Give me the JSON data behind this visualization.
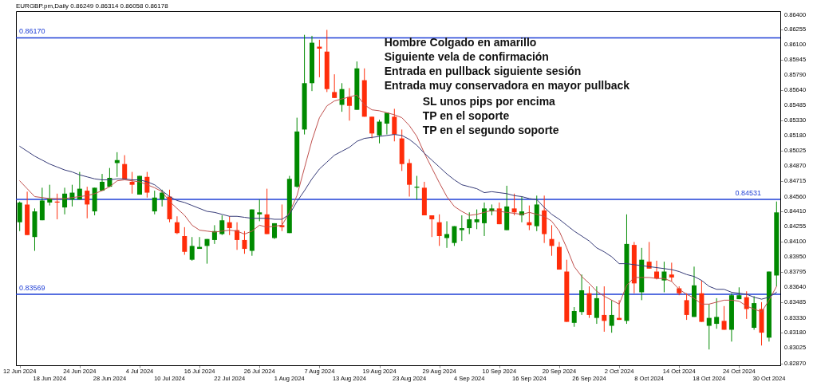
{
  "chart_data": {
    "type": "candlestick",
    "title": "EURGBP.pm,Daily  0.86249 0.86314 0.86058 0.86178",
    "categories": [
      "12 Jun 2024",
      null,
      null,
      null,
      "18 Jun 2024",
      null,
      null,
      null,
      "24 Jun 2024",
      null,
      null,
      null,
      "28 Jun 2024",
      null,
      null,
      null,
      "4 Jul 2024",
      null,
      null,
      null,
      "10 Jul 2024",
      null,
      null,
      null,
      "16 Jul 2024",
      null,
      null,
      null,
      "22 Jul 2024",
      null,
      null,
      null,
      "26 Jul 2024",
      null,
      null,
      null,
      "1 Aug 2024",
      null,
      null,
      null,
      "7 Aug 2024",
      null,
      null,
      null,
      "13 Aug 2024",
      null,
      null,
      null,
      "19 Aug 2024",
      null,
      null,
      null,
      "23 Aug 2024",
      null,
      null,
      null,
      "29 Aug 2024",
      null,
      null,
      null,
      "4 Sep 2024",
      null,
      null,
      null,
      "10 Sep 2024",
      null,
      null,
      null,
      "16 Sep 2024",
      null,
      null,
      null,
      "20 Sep 2024",
      null,
      null,
      null,
      "26 Sep 2024",
      null,
      null,
      null,
      "2 Oct 2024",
      null,
      null,
      null,
      "8 Oct 2024",
      null,
      null,
      null,
      "14 Oct 2024",
      null,
      null,
      null,
      "18 Oct 2024",
      null,
      null,
      null,
      "24 Oct 2024",
      null,
      null,
      null,
      "30 Oct 2024",
      null
    ],
    "ohlc": [
      [
        0.843,
        0.8451,
        0.8421,
        0.845
      ],
      [
        0.8448,
        0.8461,
        0.8417,
        0.8417
      ],
      [
        0.8415,
        0.8444,
        0.8401,
        0.8441
      ],
      [
        0.8432,
        0.8465,
        0.8432,
        0.8452
      ],
      [
        0.845,
        0.8468,
        0.8447,
        0.8454
      ],
      [
        0.8451,
        0.8459,
        0.8433,
        0.845
      ],
      [
        0.8445,
        0.8465,
        0.8438,
        0.8459
      ],
      [
        0.8453,
        0.8468,
        0.8446,
        0.846
      ],
      [
        0.8453,
        0.8481,
        0.8453,
        0.8464
      ],
      [
        0.8462,
        0.8466,
        0.8434,
        0.8448
      ],
      [
        0.8441,
        0.8465,
        0.8437,
        0.8465
      ],
      [
        0.8462,
        0.8479,
        0.8462,
        0.8471
      ],
      [
        0.8466,
        0.8485,
        0.8466,
        0.8475
      ],
      [
        0.849,
        0.8501,
        0.8476,
        0.8493
      ],
      [
        0.8489,
        0.8498,
        0.8474,
        0.8474
      ],
      [
        0.8471,
        0.8481,
        0.8459,
        0.8468
      ],
      [
        0.8458,
        0.8477,
        0.8458,
        0.8477
      ],
      [
        0.8476,
        0.8481,
        0.8455,
        0.846
      ],
      [
        0.8441,
        0.8462,
        0.8438,
        0.8455
      ],
      [
        0.8453,
        0.8463,
        0.8446,
        0.846
      ],
      [
        0.8456,
        0.8463,
        0.843,
        0.8433
      ],
      [
        0.843,
        0.8436,
        0.8418,
        0.8419
      ],
      [
        0.8416,
        0.8425,
        0.8397,
        0.84
      ],
      [
        0.8392,
        0.8415,
        0.8391,
        0.8406
      ],
      [
        0.8403,
        0.8415,
        0.8403,
        0.8405
      ],
      [
        0.8406,
        0.8413,
        0.8388,
        0.8413
      ],
      [
        0.8412,
        0.8427,
        0.8408,
        0.8421
      ],
      [
        0.8418,
        0.8437,
        0.8417,
        0.8432
      ],
      [
        0.843,
        0.8436,
        0.8417,
        0.8424
      ],
      [
        0.8422,
        0.843,
        0.8402,
        0.8412
      ],
      [
        0.8412,
        0.8421,
        0.8398,
        0.8403
      ],
      [
        0.8401,
        0.8443,
        0.8396,
        0.8443
      ],
      [
        0.8438,
        0.8453,
        0.8431,
        0.844
      ],
      [
        0.8438,
        0.8464,
        0.8418,
        0.8418
      ],
      [
        0.8414,
        0.8429,
        0.8413,
        0.8429
      ],
      [
        0.8427,
        0.8448,
        0.8421,
        0.8425
      ],
      [
        0.8419,
        0.8477,
        0.8419,
        0.8474
      ],
      [
        0.8466,
        0.8536,
        0.8465,
        0.8522
      ],
      [
        0.8524,
        0.862,
        0.8519,
        0.8571
      ],
      [
        0.8571,
        0.8619,
        0.8563,
        0.8612
      ],
      [
        0.8608,
        0.8615,
        0.8577,
        0.8606
      ],
      [
        0.8603,
        0.8625,
        0.8562,
        0.8565
      ],
      [
        0.8562,
        0.858,
        0.8556,
        0.8556
      ],
      [
        0.8549,
        0.8571,
        0.8542,
        0.8565
      ],
      [
        0.8557,
        0.8566,
        0.8533,
        0.8548
      ],
      [
        0.8544,
        0.8593,
        0.8544,
        0.8586
      ],
      [
        0.8574,
        0.8586,
        0.8537,
        0.8537
      ],
      [
        0.8537,
        0.8537,
        0.8515,
        0.852
      ],
      [
        0.8518,
        0.8534,
        0.851,
        0.8532
      ],
      [
        0.853,
        0.8541,
        0.8519,
        0.8541
      ],
      [
        0.8537,
        0.8545,
        0.8512,
        0.8519
      ],
      [
        0.8515,
        0.8524,
        0.8482,
        0.8489
      ],
      [
        0.849,
        0.8494,
        0.8456,
        0.8468
      ],
      [
        0.8465,
        0.8477,
        0.8453,
        0.8466
      ],
      [
        0.8465,
        0.8471,
        0.8437,
        0.8437
      ],
      [
        0.8437,
        0.8437,
        0.8415,
        0.8433
      ],
      [
        0.843,
        0.8438,
        0.8406,
        0.8416
      ],
      [
        0.8414,
        0.8431,
        0.8404,
        0.8418
      ],
      [
        0.8409,
        0.8426,
        0.8406,
        0.8426
      ],
      [
        0.8422,
        0.8437,
        0.8411,
        0.8424
      ],
      [
        0.8424,
        0.844,
        0.8418,
        0.8433
      ],
      [
        0.843,
        0.8443,
        0.8423,
        0.8433
      ],
      [
        0.8429,
        0.845,
        0.8416,
        0.8444
      ],
      [
        0.8441,
        0.8448,
        0.8437,
        0.8444
      ],
      [
        0.8444,
        0.845,
        0.8428,
        0.8428
      ],
      [
        0.8422,
        0.8467,
        0.8422,
        0.8446
      ],
      [
        0.8444,
        0.8459,
        0.8437,
        0.844
      ],
      [
        0.8437,
        0.8456,
        0.843,
        0.8441
      ],
      [
        0.843,
        0.8447,
        0.8422,
        0.8427
      ],
      [
        0.8426,
        0.8457,
        0.8421,
        0.8448
      ],
      [
        0.8442,
        0.8457,
        0.8409,
        0.8418
      ],
      [
        0.8413,
        0.8427,
        0.8396,
        0.8406
      ],
      [
        0.8405,
        0.841,
        0.8382,
        0.8382
      ],
      [
        0.838,
        0.8392,
        0.8329,
        0.8329
      ],
      [
        0.8328,
        0.8344,
        0.8324,
        0.834
      ],
      [
        0.8339,
        0.8377,
        0.8336,
        0.8361
      ],
      [
        0.8358,
        0.8365,
        0.8333,
        0.8336
      ],
      [
        0.8333,
        0.8365,
        0.8327,
        0.8353
      ],
      [
        0.8336,
        0.8365,
        0.8319,
        0.833
      ],
      [
        0.8325,
        0.8351,
        0.8318,
        0.8336
      ],
      [
        0.8333,
        0.8351,
        0.8331,
        0.8331
      ],
      [
        0.833,
        0.8438,
        0.8327,
        0.8408
      ],
      [
        0.8407,
        0.841,
        0.8358,
        0.8368
      ],
      [
        0.8359,
        0.8404,
        0.8351,
        0.8392
      ],
      [
        0.839,
        0.841,
        0.8383,
        0.8383
      ],
      [
        0.838,
        0.8391,
        0.8372,
        0.8373
      ],
      [
        0.8371,
        0.839,
        0.8359,
        0.838
      ],
      [
        0.8377,
        0.8389,
        0.837,
        0.8374
      ],
      [
        0.8363,
        0.8365,
        0.8356,
        0.8358
      ],
      [
        0.8351,
        0.8358,
        0.8331,
        0.8336
      ],
      [
        0.8334,
        0.8385,
        0.8334,
        0.8366
      ],
      [
        0.8358,
        0.8371,
        0.8329,
        0.8329
      ],
      [
        0.8325,
        0.8347,
        0.8301,
        0.8333
      ],
      [
        0.8327,
        0.8353,
        0.8322,
        0.8334
      ],
      [
        0.833,
        0.8345,
        0.8321,
        0.8321
      ],
      [
        0.8321,
        0.8358,
        0.8309,
        0.8356
      ],
      [
        0.8352,
        0.8364,
        0.8352,
        0.8356
      ],
      [
        0.8354,
        0.836,
        0.8332,
        0.8342
      ],
      [
        0.8323,
        0.8355,
        0.8321,
        0.8348
      ],
      [
        0.8342,
        0.8349,
        0.8305,
        0.8318
      ],
      [
        0.8313,
        0.838,
        0.8309,
        0.838
      ],
      [
        0.8376,
        0.8451,
        0.8365,
        0.844
      ]
    ],
    "colors": [
      "#008a00",
      "#ff2d0a",
      "#008a00",
      "#008a00",
      "#008a00",
      "#ff2d0a",
      "#008a00",
      "#008a00",
      "#008a00",
      "#ff2d0a",
      "#008a00",
      "#008a00",
      "#008a00",
      "#008a00",
      "#ff2d0a",
      "#ff2d0a",
      "#008a00",
      "#ff2d0a",
      "#008a00",
      "#008a00",
      "#ff2d0a",
      "#ff2d0a",
      "#ff2d0a",
      "#008a00",
      "#008a00",
      "#008a00",
      "#008a00",
      "#008a00",
      "#ff2d0a",
      "#ff2d0a",
      "#ff2d0a",
      "#008a00",
      "#008a00",
      "#ff2d0a",
      "#008a00",
      "#ff2d0a",
      "#008a00",
      "#008a00",
      "#008a00",
      "#008a00",
      "#ff2d0a",
      "#ff2d0a",
      "#ff2d0a",
      "#008a00",
      "#ff2d0a",
      "#008a00",
      "#ff2d0a",
      "#ff2d0a",
      "#008a00",
      "#008a00",
      "#ff2d0a",
      "#ff2d0a",
      "#ff2d0a",
      "#008a00",
      "#ff2d0a",
      "#ff2d0a",
      "#ff2d0a",
      "#008a00",
      "#008a00",
      "#008a00",
      "#008a00",
      "#008a00",
      "#008a00",
      "#008a00",
      "#ff2d0a",
      "#008a00",
      "#ff2d0a",
      "#008a00",
      "#ff2d0a",
      "#008a00",
      "#ff2d0a",
      "#ff2d0a",
      "#ff2d0a",
      "#ff2d0a",
      "#008a00",
      "#008a00",
      "#ff2d0a",
      "#008a00",
      "#ff2d0a",
      "#008a00",
      "#ff2d0a",
      "#008a00",
      "#ff2d0a",
      "#008a00",
      "#ff2d0a",
      "#ff2d0a",
      "#008a00",
      "#ff2d0a",
      "#ff2d0a",
      "#ff2d0a",
      "#008a00",
      "#ff2d0a",
      "#008a00",
      "#008a00",
      "#ff2d0a",
      "#008a00",
      "#008a00",
      "#ff2d0a",
      "#008a00",
      "#ff2d0a",
      "#008a00",
      "#008a00"
    ],
    "series": [
      {
        "type": "line",
        "color": "#c0504d",
        "values": [
          0.8472,
          0.8464,
          0.8456,
          0.8455,
          0.8454,
          0.8454,
          0.8454,
          0.8455,
          0.8456,
          0.8457,
          0.8459,
          0.8462,
          0.8466,
          0.8472,
          0.8473,
          0.8472,
          0.8471,
          0.8468,
          0.8465,
          0.8461,
          0.8451,
          0.8444,
          0.8437,
          0.8427,
          0.8422,
          0.8421,
          0.842,
          0.8421,
          0.8422,
          0.8421,
          0.8418,
          0.8421,
          0.8427,
          0.8425,
          0.8426,
          0.8427,
          0.844,
          0.8457,
          0.8485,
          0.8513,
          0.8536,
          0.8548,
          0.8553,
          0.8555,
          0.8557,
          0.8559,
          0.8549,
          0.8544,
          0.8543,
          0.8541,
          0.8539,
          0.8536,
          0.8528,
          0.8517,
          0.85,
          0.8485,
          0.847,
          0.8456,
          0.8446,
          0.8441,
          0.8437,
          0.8438,
          0.844,
          0.8442,
          0.8441,
          0.844,
          0.8439,
          0.8438,
          0.844,
          0.8438,
          0.8436,
          0.8431,
          0.8421,
          0.8404,
          0.8385,
          0.8375,
          0.8368,
          0.836,
          0.8355,
          0.8351,
          0.8347,
          0.8366,
          0.8374,
          0.8374,
          0.8374,
          0.8373,
          0.8373,
          0.837,
          0.8362,
          0.8357,
          0.8353,
          0.8347,
          0.8347,
          0.8349,
          0.8351,
          0.8351,
          0.835,
          0.8345,
          0.8342,
          0.8339,
          0.8351,
          0.8365
        ]
      },
      {
        "type": "line",
        "color": "#363b78",
        "values": [
          0.8507,
          0.8502,
          0.8497,
          0.8493,
          0.8489,
          0.8486,
          0.8483,
          0.8481,
          0.8478,
          0.8476,
          0.8474,
          0.8473,
          0.8473,
          0.8474,
          0.8474,
          0.8473,
          0.8473,
          0.8471,
          0.8468,
          0.8462,
          0.8456,
          0.8452,
          0.845,
          0.8447,
          0.8444,
          0.8441,
          0.844,
          0.8438,
          0.8436,
          0.8436,
          0.8435,
          0.8434,
          0.8434,
          0.8434,
          0.8433,
          0.8433,
          0.8438,
          0.8451,
          0.8462,
          0.8474,
          0.8484,
          0.8491,
          0.8498,
          0.8502,
          0.8506,
          0.8512,
          0.8515,
          0.8516,
          0.8517,
          0.8518,
          0.8519,
          0.8518,
          0.8514,
          0.8508,
          0.85,
          0.8493,
          0.8486,
          0.8479,
          0.8473,
          0.8468,
          0.8466,
          0.8464,
          0.846,
          0.8461,
          0.846,
          0.8459,
          0.8457,
          0.8456,
          0.8454,
          0.8453,
          0.8445,
          0.8438,
          0.8433,
          0.8427,
          0.8421,
          0.8416,
          0.8411,
          0.8404,
          0.84,
          0.8395,
          0.8388,
          0.8388,
          0.8387,
          0.8386,
          0.8385,
          0.8384,
          0.8383,
          0.8382,
          0.838,
          0.8377,
          0.8375,
          0.8371,
          0.8365,
          0.8362,
          0.8362,
          0.8359,
          0.8358,
          0.8357,
          0.8354,
          0.8352,
          0.8354,
          0.8359
        ]
      }
    ],
    "ylim": [
      0.8285,
      0.8644
    ],
    "yticks": [
      {
        "value": 0.864,
        "label": "0.86400"
      },
      0.86255,
      {
        "value": 0.861,
        "label": "0.86100"
      },
      0.85945,
      {
        "value": 0.8579,
        "label": "0.85790"
      },
      {
        "value": 0.8564,
        "label": "0.85640"
      },
      0.85485,
      {
        "value": 0.8533,
        "label": "0.85330"
      },
      {
        "value": 0.8518,
        "label": "0.85180"
      },
      0.85025,
      {
        "value": 0.8487,
        "label": "0.84870"
      },
      0.84715,
      {
        "value": 0.8456,
        "label": "0.84560"
      },
      {
        "value": 0.8441,
        "label": "0.84410"
      },
      0.84255,
      {
        "value": 0.841,
        "label": "0.84100"
      },
      {
        "value": 0.8395,
        "label": "0.83950"
      },
      0.83795,
      {
        "value": 0.8364,
        "label": "0.83640"
      },
      0.83485,
      {
        "value": 0.8333,
        "label": "0.83330"
      },
      {
        "value": 0.8318,
        "label": "0.83180"
      },
      0.83025,
      {
        "value": 0.8287,
        "label": "0.82870"
      }
    ],
    "ref_lines": [
      {
        "axis": "y",
        "value": 0.8617,
        "label": "0.86170",
        "color": "#1f3fd6"
      },
      {
        "axis": "y",
        "value": 0.84531,
        "label": "0.84531",
        "color": "#1f3fd6"
      },
      {
        "axis": "y",
        "value": 0.83569,
        "label": "0.83569",
        "color": "#1f3fd6"
      }
    ],
    "annotations": [
      "Hombre Colgado en amarillo",
      "Siguiente vela de confirmación",
      "Entrada en pullback siguiente sesión",
      "Entrada muy conservadora en mayor pullback",
      "SL unos pips por encima",
      "TP en el soporte",
      "TP en el segundo soporte"
    ]
  }
}
